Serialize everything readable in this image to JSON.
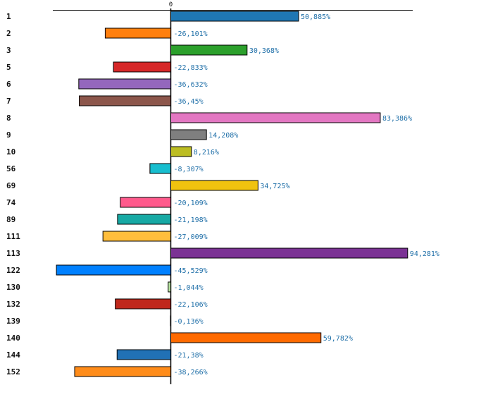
{
  "chart_data": {
    "type": "bar",
    "orientation": "horizontal",
    "title": "",
    "xlabel": "",
    "ylabel": "",
    "xlim": [
      -50,
      102
    ],
    "zero_label": "0",
    "grid": false,
    "legend": "none",
    "categories": [
      "1",
      "2",
      "3",
      "5",
      "6",
      "7",
      "8",
      "9",
      "10",
      "56",
      "69",
      "74",
      "89",
      "111",
      "113",
      "122",
      "130",
      "132",
      "139",
      "140",
      "144",
      "152"
    ],
    "values": [
      50.885,
      -26.101,
      30.368,
      -22.833,
      -36.632,
      -36.45,
      83.386,
      14.208,
      8.216,
      -8.307,
      34.725,
      -20.109,
      -21.198,
      -27.009,
      94.281,
      -45.529,
      -1.044,
      -22.106,
      -0.136,
      59.782,
      -21.38,
      -38.266
    ],
    "value_labels": [
      "50,885%",
      "-26,101%",
      "30,368%",
      "-22,833%",
      "-36,632%",
      "-36,45%",
      "83,386%",
      "14,208%",
      "8,216%",
      "-8,307%",
      "34,725%",
      "-20,109%",
      "-21,198%",
      "-27,009%",
      "94,281%",
      "-45,529%",
      "-1,044%",
      "-22,106%",
      "-0,136%",
      "59,782%",
      "-21,38%",
      "-38,266%"
    ],
    "colors": [
      "#1f77b4",
      "#ff7f0e",
      "#2ca02c",
      "#d62728",
      "#9467bd",
      "#8c564b",
      "#e377c2",
      "#7f7f7f",
      "#bcbd22",
      "#17becf",
      "#f0c30f",
      "#ff5a8c",
      "#17a9a4",
      "#ffbe3c",
      "#7b3294",
      "#0080ff",
      "#b7e4a0",
      "#c0281c",
      "#e8e8e8",
      "#ff6a00",
      "#2171b5",
      "#ff8c1a"
    ],
    "label_color": "#1f6fa8"
  }
}
